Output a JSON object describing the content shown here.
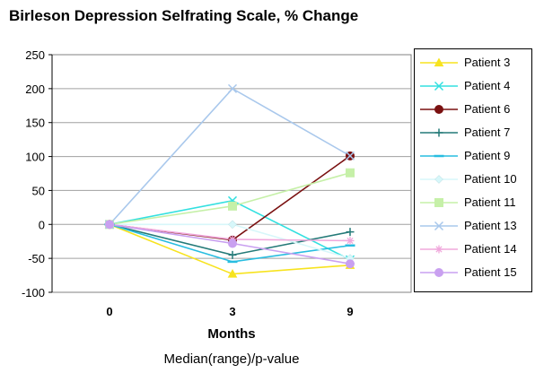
{
  "chart_data": {
    "type": "line",
    "title": "Birleson Depression Selfrating Scale, % Change",
    "xlabel": "Months",
    "footnote": "Median(range)/p-value",
    "categories": [
      "0",
      "3",
      "9"
    ],
    "ylim": [
      -100,
      250
    ],
    "yticks": [
      "250",
      "200",
      "150",
      "100",
      "50",
      "0",
      "-50",
      "-100"
    ],
    "ytick_values": [
      250,
      200,
      150,
      100,
      50,
      0,
      -50,
      -100
    ],
    "grid": "horizontal",
    "legend_position": "right",
    "series": [
      {
        "name": "Patient 3",
        "values": [
          0,
          -73,
          -60
        ],
        "color": "#f7e31e",
        "marker": "triangle"
      },
      {
        "name": "Patient 4",
        "values": [
          0,
          35,
          -52
        ],
        "color": "#33e0e0",
        "marker": "x"
      },
      {
        "name": "Patient 6",
        "values": [
          0,
          -23,
          101
        ],
        "color": "#7a1010",
        "marker": "circle"
      },
      {
        "name": "Patient 7",
        "values": [
          0,
          -45,
          -11
        ],
        "color": "#247a78",
        "marker": "plus"
      },
      {
        "name": "Patient 9",
        "values": [
          0,
          -55,
          -31
        ],
        "color": "#28bde0",
        "marker": "dash"
      },
      {
        "name": "Patient 10",
        "values": [
          0,
          0,
          -50
        ],
        "color": "#d7f7fa",
        "marker": "diamond"
      },
      {
        "name": "Patient 11",
        "values": [
          0,
          27,
          76
        ],
        "color": "#c6f0a8",
        "marker": "square"
      },
      {
        "name": "Patient 13",
        "values": [
          0,
          200,
          101
        ],
        "color": "#a9c8ec",
        "marker": "x"
      },
      {
        "name": "Patient 14",
        "values": [
          0,
          -22,
          -24
        ],
        "color": "#f0a8dc",
        "marker": "asterisk"
      },
      {
        "name": "Patient 15",
        "values": [
          0,
          -28,
          -58
        ],
        "color": "#c9a0f0",
        "marker": "circle"
      }
    ]
  }
}
